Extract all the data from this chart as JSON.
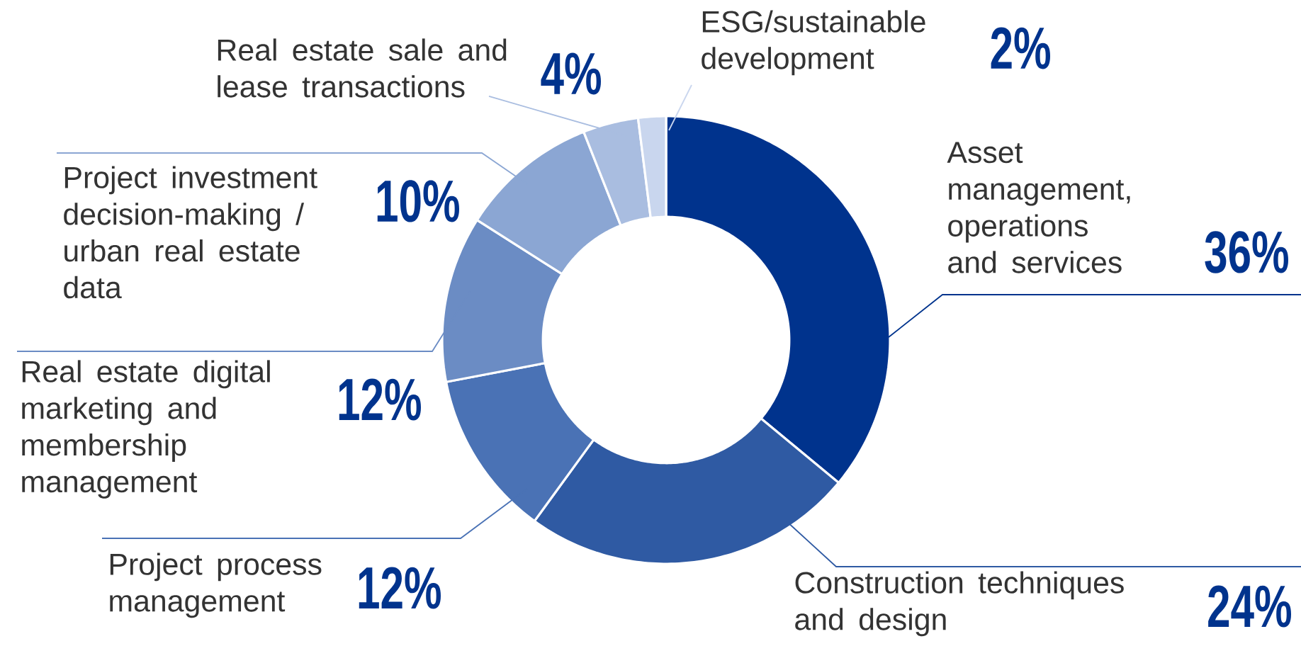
{
  "chart_data": {
    "type": "donut",
    "categories": [
      "Asset management, operations and services",
      "Construction techniques and design",
      "Project process management",
      "Real estate digital marketing and membership management",
      "Project investment decision-making / urban real estate data",
      "Real estate sale and lease transactions",
      "ESG/sustainable development"
    ],
    "values": [
      36,
      24,
      12,
      12,
      10,
      4,
      2
    ],
    "colors": [
      "#00338d",
      "#2f5aa3",
      "#4a72b5",
      "#6b8cc4",
      "#8ba6d3",
      "#a9bde0",
      "#c9d6ee"
    ],
    "value_labels": [
      "36%",
      "24%",
      "12%",
      "12%",
      "10%",
      "4%",
      "2%"
    ]
  }
}
